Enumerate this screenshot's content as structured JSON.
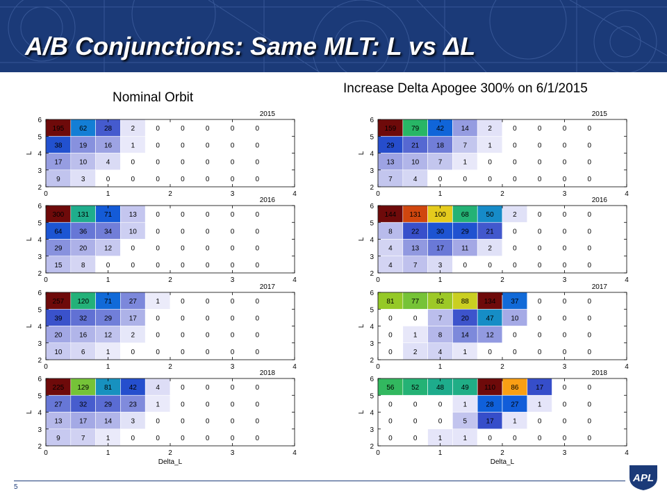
{
  "title": "A/B Conjunctions:  Same MLT:  L vs ΔL",
  "left_title": "Nominal Orbit",
  "right_title": "Increase Delta Apogee 300% on 6/1/2015",
  "page_number": "5",
  "logo_text": "APL",
  "colors": {
    "header": "#1b3a78",
    "colormap": "parula-like (low = white/lavender, mid = blue/green, high = yellow/orange/dark red)"
  },
  "chart_data": [
    {
      "type": "heatmap",
      "panel": "Nominal Orbit",
      "title": "2015",
      "ylabel": "L",
      "xlabel": "",
      "x_ticks": [
        "0",
        "1",
        "2",
        "3",
        "4"
      ],
      "y_ticks": [
        "2",
        "3",
        "4",
        "5",
        "6"
      ],
      "xlim": [
        0,
        4
      ],
      "ylim": [
        2,
        6
      ],
      "x_bin_width": 0.4,
      "y_bin_width": 1,
      "values": [
        [
          195,
          62,
          28,
          2,
          0,
          0,
          0,
          0,
          0
        ],
        [
          38,
          19,
          16,
          1,
          0,
          0,
          0,
          0,
          0
        ],
        [
          17,
          10,
          4,
          0,
          0,
          0,
          0,
          0,
          0
        ],
        [
          9,
          3,
          0,
          0,
          0,
          0,
          0,
          0,
          0
        ]
      ]
    },
    {
      "type": "heatmap",
      "panel": "Nominal Orbit",
      "title": "2016",
      "ylabel": "L",
      "xlabel": "",
      "x_ticks": [
        "0",
        "1",
        "2",
        "3",
        "4"
      ],
      "y_ticks": [
        "2",
        "3",
        "4",
        "5",
        "6"
      ],
      "xlim": [
        0,
        4
      ],
      "ylim": [
        2,
        6
      ],
      "x_bin_width": 0.4,
      "y_bin_width": 1,
      "values": [
        [
          300,
          131,
          71,
          13,
          0,
          0,
          0,
          0,
          0
        ],
        [
          64,
          36,
          34,
          10,
          0,
          0,
          0,
          0,
          0
        ],
        [
          29,
          20,
          12,
          0,
          0,
          0,
          0,
          0,
          0
        ],
        [
          15,
          8,
          0,
          0,
          0,
          0,
          0,
          0,
          0
        ]
      ]
    },
    {
      "type": "heatmap",
      "panel": "Nominal Orbit",
      "title": "2017",
      "ylabel": "L",
      "xlabel": "",
      "x_ticks": [
        "0",
        "1",
        "2",
        "3",
        "4"
      ],
      "y_ticks": [
        "2",
        "3",
        "4",
        "5",
        "6"
      ],
      "xlim": [
        0,
        4
      ],
      "ylim": [
        2,
        6
      ],
      "x_bin_width": 0.4,
      "y_bin_width": 1,
      "values": [
        [
          257,
          120,
          71,
          27,
          1,
          0,
          0,
          0,
          0
        ],
        [
          39,
          32,
          29,
          17,
          0,
          0,
          0,
          0,
          0
        ],
        [
          20,
          16,
          12,
          2,
          0,
          0,
          0,
          0,
          0
        ],
        [
          10,
          6,
          1,
          0,
          0,
          0,
          0,
          0,
          0
        ]
      ]
    },
    {
      "type": "heatmap",
      "panel": "Nominal Orbit",
      "title": "2018",
      "ylabel": "L",
      "xlabel": "Delta_L",
      "x_ticks": [
        "0",
        "1",
        "2",
        "3",
        "4"
      ],
      "y_ticks": [
        "2",
        "3",
        "4",
        "5",
        "6"
      ],
      "xlim": [
        0,
        4
      ],
      "ylim": [
        2,
        6
      ],
      "x_bin_width": 0.4,
      "y_bin_width": 1,
      "values": [
        [
          225,
          129,
          81,
          42,
          4,
          0,
          0,
          0,
          0
        ],
        [
          27,
          32,
          29,
          23,
          1,
          0,
          0,
          0,
          0
        ],
        [
          13,
          17,
          14,
          3,
          0,
          0,
          0,
          0,
          0
        ],
        [
          9,
          7,
          1,
          0,
          0,
          0,
          0,
          0,
          0
        ]
      ]
    },
    {
      "type": "heatmap",
      "panel": "Increase Delta Apogee 300% on 6/1/2015",
      "title": "2015",
      "ylabel": "L",
      "xlabel": "",
      "x_ticks": [
        "0",
        "1",
        "2",
        "3",
        "4"
      ],
      "y_ticks": [
        "2",
        "3",
        "4",
        "5",
        "6"
      ],
      "xlim": [
        0,
        4
      ],
      "ylim": [
        2,
        6
      ],
      "x_bin_width": 0.4,
      "y_bin_width": 1,
      "values": [
        [
          159,
          79,
          42,
          14,
          2,
          0,
          0,
          0,
          0
        ],
        [
          29,
          21,
          18,
          7,
          1,
          0,
          0,
          0,
          0
        ],
        [
          13,
          10,
          7,
          1,
          0,
          0,
          0,
          0,
          0
        ],
        [
          7,
          4,
          0,
          0,
          0,
          0,
          0,
          0,
          0
        ]
      ]
    },
    {
      "type": "heatmap",
      "panel": "Increase Delta Apogee 300% on 6/1/2015",
      "title": "2016",
      "ylabel": "L",
      "xlabel": "",
      "x_ticks": [
        "0",
        "1",
        "2",
        "3",
        "4"
      ],
      "y_ticks": [
        "2",
        "3",
        "4",
        "5",
        "6"
      ],
      "xlim": [
        0,
        4
      ],
      "ylim": [
        2,
        6
      ],
      "x_bin_width": 0.4,
      "y_bin_width": 1,
      "values": [
        [
          144,
          131,
          100,
          68,
          50,
          2,
          0,
          0,
          0
        ],
        [
          8,
          22,
          30,
          29,
          21,
          0,
          0,
          0,
          0
        ],
        [
          4,
          13,
          17,
          11,
          2,
          0,
          0,
          0,
          0
        ],
        [
          4,
          7,
          3,
          0,
          0,
          0,
          0,
          0,
          0
        ]
      ]
    },
    {
      "type": "heatmap",
      "panel": "Increase Delta Apogee 300% on 6/1/2015",
      "title": "2017",
      "ylabel": "L",
      "xlabel": "",
      "x_ticks": [
        "0",
        "1",
        "2",
        "3",
        "4"
      ],
      "y_ticks": [
        "2",
        "3",
        "4",
        "5",
        "6"
      ],
      "xlim": [
        0,
        4
      ],
      "ylim": [
        2,
        6
      ],
      "x_bin_width": 0.4,
      "y_bin_width": 1,
      "values": [
        [
          81,
          77,
          82,
          88,
          134,
          37,
          0,
          0,
          0
        ],
        [
          0,
          0,
          7,
          20,
          47,
          10,
          0,
          0,
          0
        ],
        [
          0,
          1,
          8,
          14,
          12,
          0,
          0,
          0,
          0
        ],
        [
          0,
          2,
          4,
          1,
          0,
          0,
          0,
          0,
          0
        ]
      ]
    },
    {
      "type": "heatmap",
      "panel": "Increase Delta Apogee 300% on 6/1/2015",
      "title": "2018",
      "ylabel": "L",
      "xlabel": "Delta_L",
      "x_ticks": [
        "0",
        "1",
        "2",
        "3",
        "4"
      ],
      "y_ticks": [
        "2",
        "3",
        "4",
        "5",
        "6"
      ],
      "xlim": [
        0,
        4
      ],
      "ylim": [
        2,
        6
      ],
      "x_bin_width": 0.4,
      "y_bin_width": 1,
      "values": [
        [
          56,
          52,
          48,
          49,
          110,
          86,
          17,
          0,
          0
        ],
        [
          0,
          0,
          0,
          1,
          28,
          27,
          1,
          0,
          0
        ],
        [
          0,
          0,
          0,
          5,
          17,
          1,
          0,
          0,
          0
        ],
        [
          0,
          0,
          1,
          1,
          0,
          0,
          0,
          0,
          0
        ]
      ]
    }
  ]
}
